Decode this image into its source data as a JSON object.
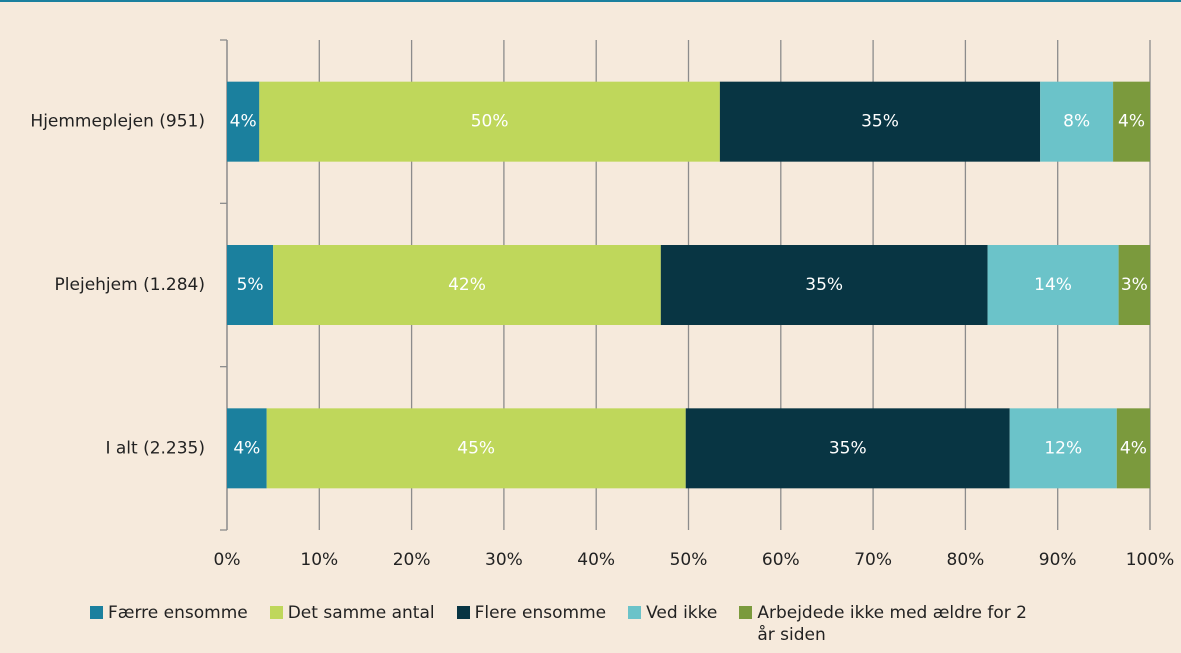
{
  "chart_data": {
    "type": "stacked-bar-horizontal",
    "categories": [
      "Hjemmeplejen (951)",
      "Plejehjem (1.284)",
      "I alt (2.235)"
    ],
    "series": [
      {
        "name": "Færre ensomme",
        "color": "#1b809e",
        "values": [
          3.5,
          5.0,
          4.3
        ],
        "value_labels": [
          "4%",
          "5%",
          "4%"
        ]
      },
      {
        "name": "Det samme antal",
        "color": "#bfd75b",
        "values": [
          49.9,
          42.0,
          45.4
        ],
        "value_labels": [
          "50%",
          "42%",
          "45%"
        ]
      },
      {
        "name": "Flere ensomme",
        "color": "#083543",
        "values": [
          34.7,
          35.4,
          35.1
        ],
        "value_labels": [
          "35%",
          "35%",
          "35%"
        ]
      },
      {
        "name": "Ved ikke",
        "color": "#6bc3c9",
        "values": [
          7.9,
          14.2,
          11.6
        ],
        "value_labels": [
          "8%",
          "14%",
          "12%"
        ]
      },
      {
        "name": "Arbejdede ikke med ældre for 2 år siden",
        "color": "#7b9a3d",
        "values": [
          4.0,
          3.4,
          3.6
        ],
        "value_labels": [
          "4%",
          "3%",
          "4%"
        ]
      }
    ],
    "xlim": [
      0,
      100
    ],
    "xticks": [
      {
        "value": 0,
        "label": "0%"
      },
      {
        "value": 10,
        "label": "10%"
      },
      {
        "value": 20,
        "label": "20%"
      },
      {
        "value": 30,
        "label": "30%"
      },
      {
        "value": 40,
        "label": "40%"
      },
      {
        "value": 50,
        "label": "50%"
      },
      {
        "value": 60,
        "label": "60%"
      },
      {
        "value": 70,
        "label": "70%"
      },
      {
        "value": 80,
        "label": "80%"
      },
      {
        "value": 90,
        "label": "90%"
      },
      {
        "value": 100,
        "label": "100%"
      }
    ],
    "grid": true
  }
}
